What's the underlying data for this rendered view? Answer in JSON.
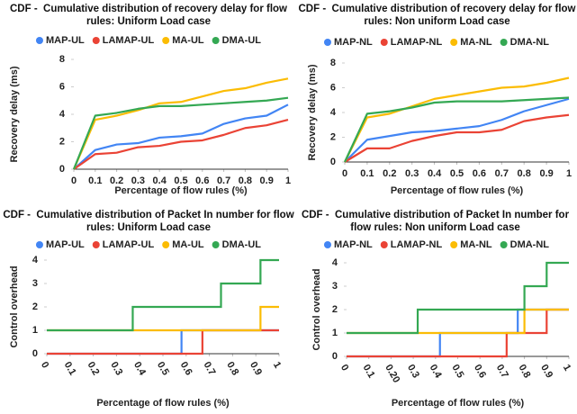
{
  "chart_data": [
    {
      "type": "line",
      "title": "CDF -  Cumulative distribution of recovery delay for flow rules: Uniform Load case",
      "x_label": "Percentage of flow rules (%)",
      "y_label": "Recovery delay (ms)",
      "x": [
        0,
        0.1,
        0.2,
        0.3,
        0.4,
        0.5,
        0.6,
        0.7,
        0.8,
        0.9,
        1
      ],
      "xlim": [
        0,
        1
      ],
      "xticks": [
        0,
        0.1,
        0.2,
        0.3,
        0.4,
        0.5,
        0.6,
        0.7,
        0.8,
        0.9,
        1
      ],
      "ylim": [
        0,
        8
      ],
      "yticks": [
        0,
        2,
        4,
        6,
        8
      ],
      "grid": false,
      "series": [
        {
          "name": "MAP-UL",
          "color": "#4285f4",
          "values": [
            0,
            1.4,
            1.8,
            1.9,
            2.3,
            2.4,
            2.6,
            3.3,
            3.7,
            3.9,
            4.7
          ]
        },
        {
          "name": "LAMAP-UL",
          "color": "#ea4335",
          "values": [
            0,
            1.1,
            1.2,
            1.6,
            1.7,
            2.0,
            2.1,
            2.5,
            3.0,
            3.2,
            3.6
          ]
        },
        {
          "name": "MA-UL",
          "color": "#fbbc04",
          "values": [
            0,
            3.6,
            3.9,
            4.3,
            4.8,
            4.9,
            5.3,
            5.7,
            5.9,
            6.3,
            6.6
          ]
        },
        {
          "name": "DMA-UL",
          "color": "#34a853",
          "values": [
            0,
            3.9,
            4.1,
            4.4,
            4.6,
            4.6,
            4.7,
            4.8,
            4.9,
            5.0,
            5.2
          ]
        }
      ]
    },
    {
      "type": "line",
      "title": "CDF -  Cumulative distribution of recovery delay for flow rules: Non uniform Load case",
      "x_label": "Percentage of flow rules (%)",
      "y_label": "Recovery delay (ms)",
      "x": [
        0,
        0.1,
        0.2,
        0.3,
        0.4,
        0.5,
        0.6,
        0.7,
        0.8,
        0.9,
        1
      ],
      "xlim": [
        0,
        1
      ],
      "xticks": [
        0,
        0.1,
        0.2,
        0.3,
        0.4,
        0.5,
        0.6,
        0.7,
        0.8,
        0.9,
        1
      ],
      "ylim": [
        0,
        8
      ],
      "yticks": [
        0,
        2,
        4,
        6,
        8
      ],
      "grid": false,
      "series": [
        {
          "name": "MAP-NL",
          "color": "#4285f4",
          "values": [
            0,
            1.8,
            2.1,
            2.4,
            2.5,
            2.7,
            2.9,
            3.4,
            4.1,
            4.6,
            5.1
          ]
        },
        {
          "name": "LAMAP-NL",
          "color": "#ea4335",
          "values": [
            0,
            1.1,
            1.1,
            1.7,
            2.1,
            2.4,
            2.4,
            2.6,
            3.3,
            3.6,
            3.8
          ]
        },
        {
          "name": "MA-NL",
          "color": "#fbbc04",
          "values": [
            0,
            3.6,
            3.9,
            4.5,
            5.1,
            5.4,
            5.7,
            6.0,
            6.1,
            6.4,
            6.8
          ]
        },
        {
          "name": "DMA-NL",
          "color": "#34a853",
          "values": [
            0,
            3.9,
            4.1,
            4.4,
            4.8,
            4.9,
            4.9,
            4.9,
            5.0,
            5.1,
            5.2
          ]
        }
      ]
    },
    {
      "type": "step",
      "title": "CDF -  Cumulative distribution of Packet In number for flow rules: Uniform Load case",
      "x_label": "Percentage of flow rules (%)",
      "y_label": "Control overhead",
      "xlim": [
        0,
        1
      ],
      "xticks": [
        0,
        0.1,
        0.2,
        0.3,
        0.4,
        0.5,
        0.6,
        0.7,
        0.8,
        0.9,
        1
      ],
      "ylim": [
        0,
        4
      ],
      "yticks": [
        0,
        1,
        2,
        3,
        4
      ],
      "grid": false,
      "series": [
        {
          "name": "MAP-UL",
          "color": "#4285f4",
          "x": [
            0,
            0.58,
            1
          ],
          "values": [
            0,
            1,
            1
          ]
        },
        {
          "name": "LAMAP-UL",
          "color": "#ea4335",
          "x": [
            0,
            0.67,
            1
          ],
          "values": [
            0,
            1,
            1
          ]
        },
        {
          "name": "MA-UL",
          "color": "#fbbc04",
          "x": [
            0,
            0.92,
            1
          ],
          "values": [
            1,
            2,
            2
          ]
        },
        {
          "name": "DMA-UL",
          "color": "#34a853",
          "x": [
            0,
            0.37,
            0.75,
            0.92,
            1
          ],
          "values": [
            1,
            2,
            3,
            4,
            4
          ]
        }
      ]
    },
    {
      "type": "step",
      "title": "CDF -  Cumulative distribution of Packet In number for flow rules: Non uniform Load case",
      "x_label": "Percentage of flow rules (%)",
      "y_label": "Control overhead",
      "xlim": [
        0,
        1
      ],
      "xticks": [
        0,
        0.1,
        {
          "value": 0.2,
          "label": "0.20"
        },
        0.3,
        0.4,
        0.5,
        0.6,
        0.7,
        0.8,
        0.9,
        1
      ],
      "ylim": [
        0,
        4
      ],
      "yticks": [
        0,
        1,
        2,
        3,
        4
      ],
      "grid": false,
      "series": [
        {
          "name": "MAP-NL",
          "color": "#4285f4",
          "x": [
            0,
            0.42,
            0.77,
            1
          ],
          "values": [
            0,
            1,
            2,
            2
          ]
        },
        {
          "name": "LAMAP-NL",
          "color": "#ea4335",
          "x": [
            0,
            0.72,
            0.9,
            1
          ],
          "values": [
            0,
            1,
            2,
            2
          ]
        },
        {
          "name": "MA-NL",
          "color": "#fbbc04",
          "x": [
            0,
            0.8,
            1
          ],
          "values": [
            1,
            2,
            2
          ]
        },
        {
          "name": "DMA-NL",
          "color": "#34a853",
          "x": [
            0,
            0.32,
            0.8,
            0.9,
            1
          ],
          "values": [
            1,
            2,
            3,
            4,
            4
          ]
        }
      ]
    }
  ]
}
